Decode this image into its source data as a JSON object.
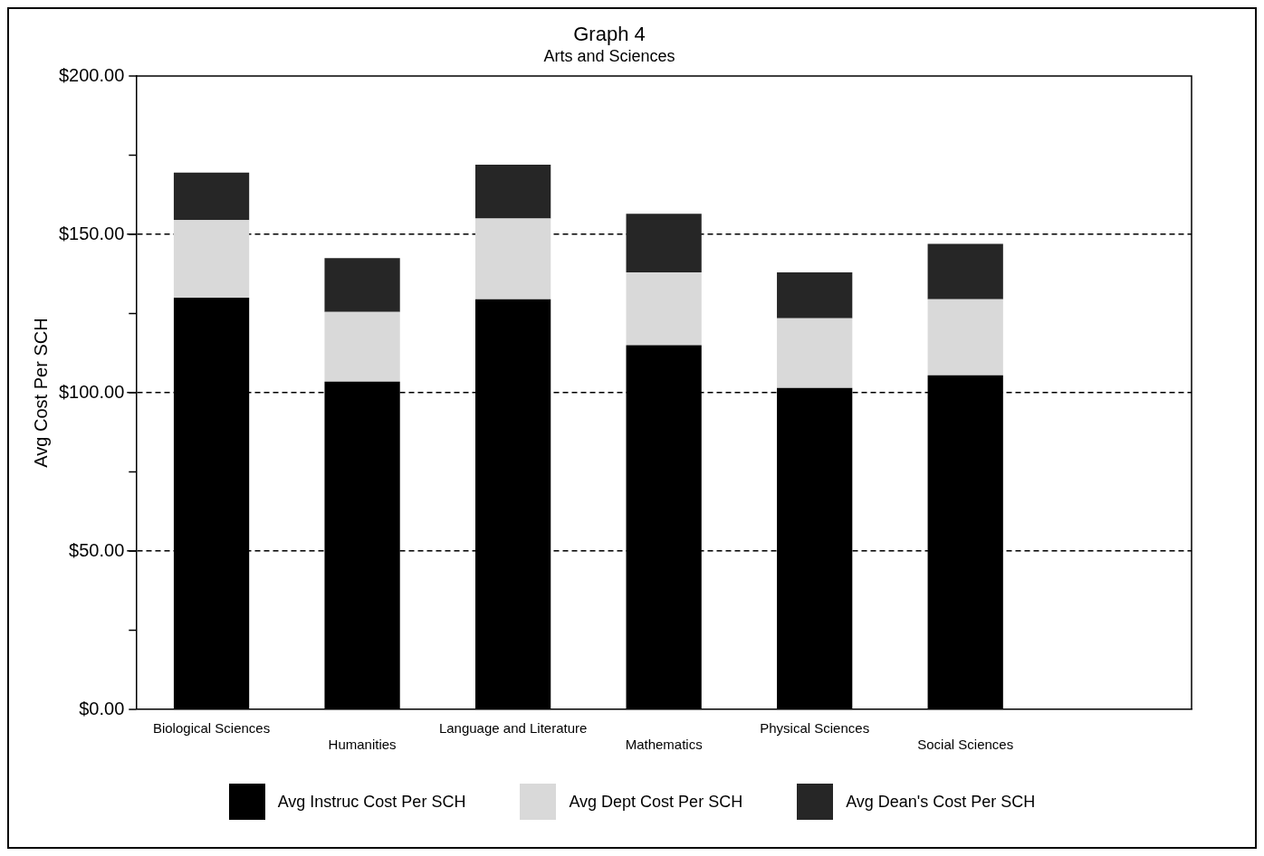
{
  "chart_data": {
    "type": "bar",
    "title": "Graph 4",
    "subtitle": "Arts and Sciences",
    "ylabel": "Avg Cost Per SCH",
    "categories": [
      "Biological Sciences",
      "Humanities",
      "Language and Literature",
      "Mathematics",
      "Physical Sciences",
      "Social Sciences",
      null
    ],
    "stacked": true,
    "series": [
      {
        "name": "Avg Instruc Cost Per SCH",
        "color": "#000000",
        "values": [
          130,
          103.5,
          129.5,
          115,
          101.5,
          105.5,
          null
        ]
      },
      {
        "name": "Avg Dept Cost Per SCH",
        "color": "#d9d9d9",
        "values": [
          24.5,
          22,
          25.5,
          23,
          22,
          24,
          null
        ]
      },
      {
        "name": "Avg Dean's Cost Per SCH",
        "color": "#262626",
        "values": [
          15,
          17,
          17,
          18.5,
          14.5,
          17.5,
          null
        ]
      }
    ],
    "ylim": [
      0,
      200
    ],
    "yticks": [
      {
        "value": 0,
        "label": "$0.00"
      },
      {
        "value": 25,
        "label": null
      },
      {
        "value": 50,
        "label": "$50.00"
      },
      {
        "value": 75,
        "label": null
      },
      {
        "value": 100,
        "label": "$100.00"
      },
      {
        "value": 125,
        "label": null
      },
      {
        "value": 150,
        "label": "$150.00"
      },
      {
        "value": 175,
        "label": null
      },
      {
        "value": 200,
        "label": "$200.00"
      }
    ],
    "grid": "y",
    "legend": "bottom"
  }
}
